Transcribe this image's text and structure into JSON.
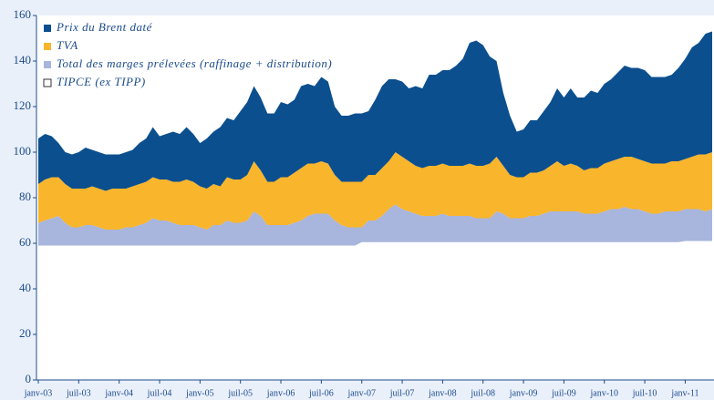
{
  "chart_data": {
    "type": "stacked_area",
    "categories": [
      "janv-03",
      null,
      null,
      null,
      null,
      null,
      "juil-03",
      null,
      null,
      null,
      null,
      null,
      "janv-04",
      null,
      null,
      null,
      null,
      null,
      "juil-04",
      null,
      null,
      null,
      null,
      null,
      "janv-05",
      null,
      null,
      null,
      null,
      null,
      "juil-05",
      null,
      null,
      null,
      null,
      null,
      "janv-06",
      null,
      null,
      null,
      null,
      null,
      "juil-06",
      null,
      null,
      null,
      null,
      null,
      "janv-07",
      null,
      null,
      null,
      null,
      null,
      "juil-07",
      null,
      null,
      null,
      null,
      null,
      "janv-08",
      null,
      null,
      null,
      null,
      null,
      "juil-08",
      null,
      null,
      null,
      null,
      null,
      "janv-09",
      null,
      null,
      null,
      null,
      null,
      "juil-09",
      null,
      null,
      null,
      null,
      null,
      "janv-10",
      null,
      null,
      null,
      null,
      null,
      "juil-10",
      null,
      null,
      null,
      null,
      null,
      "janv-11",
      null,
      null,
      null,
      null
    ],
    "series": [
      {
        "name": "TIPCE (ex TIPP)",
        "color": "#ffffff",
        "values": [
          59,
          59,
          59,
          59,
          59,
          59,
          59,
          59,
          59,
          59,
          59,
          59,
          59,
          59,
          59,
          59,
          59,
          59,
          59,
          59,
          59,
          59,
          59,
          59,
          59,
          59,
          59,
          59,
          59,
          59,
          59,
          59,
          59,
          59,
          59,
          59,
          59,
          59,
          59,
          59,
          59,
          59,
          59,
          59,
          59,
          59,
          59,
          59,
          60.5,
          60.5,
          60.5,
          60.5,
          60.5,
          60.5,
          60.5,
          60.5,
          60.5,
          60.5,
          60.5,
          60.5,
          60.5,
          60.5,
          60.5,
          60.5,
          60.5,
          60.5,
          60.5,
          60.5,
          60.5,
          60.5,
          60.5,
          60.5,
          60.5,
          60.5,
          60.5,
          60.5,
          60.5,
          60.5,
          60.5,
          60.5,
          60.5,
          60.5,
          60.5,
          60.5,
          60.5,
          60.5,
          60.5,
          60.5,
          60.5,
          60.5,
          60.5,
          60.5,
          60.5,
          60.5,
          60.5,
          60.5,
          61,
          61,
          61,
          61,
          61
        ]
      },
      {
        "name": "Total des marges prélevées (raffinage + distribution)",
        "color": "#a8b5dc",
        "values": [
          10,
          11,
          12,
          13,
          10,
          8,
          8,
          9,
          9,
          8,
          7,
          7,
          7,
          8,
          8,
          9,
          10,
          12,
          11,
          11,
          10,
          9,
          9,
          9,
          8,
          7,
          9,
          9,
          11,
          10,
          10,
          11,
          15,
          13,
          9,
          9,
          9,
          9,
          10,
          11,
          13,
          14,
          14,
          14,
          11,
          9,
          8,
          8,
          6.5,
          9.5,
          9.5,
          11.5,
          14.5,
          16.5,
          14.5,
          13.5,
          12.5,
          11.5,
          11.5,
          11.5,
          12.5,
          11.5,
          11.5,
          11.5,
          11.5,
          10.5,
          10.5,
          10.5,
          13.5,
          12.5,
          10.5,
          10.5,
          10.5,
          11.5,
          11.5,
          12.5,
          13.5,
          13.5,
          13.5,
          13.5,
          13.5,
          12.5,
          12.5,
          12.5,
          13.5,
          14.5,
          14.5,
          15.5,
          14.5,
          14.5,
          13.5,
          12.5,
          12.5,
          13.5,
          13.5,
          13.5,
          14,
          14,
          14,
          13,
          14
        ]
      },
      {
        "name": "TVA",
        "color": "#f9b52c",
        "values": [
          17,
          18,
          18,
          17,
          17,
          17,
          17,
          16,
          17,
          17,
          17,
          18,
          18,
          17,
          18,
          18,
          18,
          18,
          18,
          18,
          18,
          19,
          20,
          19,
          18,
          18,
          18,
          17,
          19,
          19,
          19,
          20,
          22,
          20,
          19,
          19,
          21,
          21,
          22,
          23,
          23,
          22,
          23,
          22,
          20,
          19,
          20,
          20,
          20,
          20,
          20,
          21,
          21,
          23,
          23,
          22,
          21,
          21,
          22,
          22,
          22,
          22,
          22,
          22,
          23,
          23,
          23,
          24,
          24,
          21,
          19,
          18,
          18,
          19,
          19,
          19,
          20,
          22,
          20,
          21,
          20,
          19,
          20,
          20,
          21,
          21,
          22,
          22,
          23,
          22,
          22,
          22,
          22,
          21,
          22,
          22,
          22,
          23,
          24,
          25,
          25
        ]
      },
      {
        "name": "Prix du Brent daté",
        "color": "#0b4f8e",
        "values": [
          20,
          20,
          18,
          15,
          14,
          15,
          16,
          18,
          16,
          16,
          16,
          15,
          15,
          16,
          16,
          18,
          19,
          22,
          19,
          20,
          22,
          21,
          23,
          21,
          19,
          22,
          23,
          26,
          26,
          26,
          30,
          32,
          33,
          32,
          30,
          30,
          33,
          32,
          32,
          36,
          35,
          34,
          37,
          36,
          30,
          29,
          29,
          30,
          30,
          28,
          33,
          36,
          36,
          32,
          33,
          32,
          35,
          35,
          40,
          40,
          41,
          42,
          44,
          47,
          53,
          55,
          53,
          47,
          42,
          32,
          26,
          20,
          21,
          23,
          23,
          26,
          28,
          32,
          30,
          33,
          30,
          32,
          34,
          33,
          35,
          36,
          38,
          40,
          39,
          40,
          40,
          38,
          38,
          38,
          38,
          41,
          44,
          48,
          49,
          53,
          53
        ]
      }
    ],
    "ylim": [
      0,
      160
    ],
    "yticks": [
      0,
      20,
      40,
      60,
      80,
      100,
      120,
      140,
      160
    ]
  }
}
